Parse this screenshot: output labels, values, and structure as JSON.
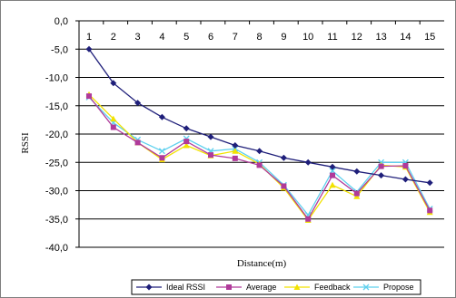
{
  "chart_data": {
    "type": "line",
    "xlabel": "Distance(m)",
    "ylabel": "RSSI",
    "x": [
      1,
      2,
      3,
      4,
      5,
      6,
      7,
      8,
      9,
      10,
      11,
      12,
      13,
      14,
      15
    ],
    "ylim": [
      -40,
      0
    ],
    "yticks": [
      0,
      -5,
      -10,
      -15,
      -20,
      -25,
      -30,
      -35,
      -40
    ],
    "ytick_labels": [
      "0,0",
      "-5,0",
      "-10,0",
      "-15,0",
      "-20,0",
      "-25,0",
      "-30,0",
      "-35,0",
      "-40,0"
    ],
    "x_axis_position": "top",
    "grid": "horizontal",
    "legend_position": "bottom",
    "series": [
      {
        "name": "Ideal  RSSI",
        "color": "#1f1f7a",
        "marker": "diamond",
        "values": [
          -5.0,
          -11.0,
          -14.5,
          -17.0,
          -19.0,
          -20.5,
          -22.0,
          -23.0,
          -24.2,
          -25.0,
          -25.8,
          -26.6,
          -27.3,
          -28.0,
          -28.6
        ]
      },
      {
        "name": "Average",
        "color": "#b03a9a",
        "marker": "square",
        "values": [
          -13.3,
          -18.8,
          -21.5,
          -24.2,
          -21.3,
          -23.7,
          -24.3,
          -25.5,
          -29.2,
          -35.0,
          -27.3,
          -30.5,
          -25.7,
          -25.6,
          -33.5
        ]
      },
      {
        "name": "Feedback",
        "color": "#f2e200",
        "marker": "triangle",
        "values": [
          -13.0,
          -17.3,
          -21.5,
          -24.5,
          -22.0,
          -23.8,
          -23.0,
          -25.3,
          -29.5,
          -35.2,
          -29.0,
          -31.0,
          -25.5,
          -25.8,
          -33.8
        ]
      },
      {
        "name": "Propose",
        "color": "#5ed0ee",
        "marker": "x",
        "values": [
          -13.5,
          -18.0,
          -21.0,
          -23.0,
          -20.8,
          -23.0,
          -22.6,
          -25.0,
          -29.0,
          -34.3,
          -26.5,
          -30.2,
          -25.0,
          -25.0,
          -33.2
        ]
      }
    ]
  }
}
